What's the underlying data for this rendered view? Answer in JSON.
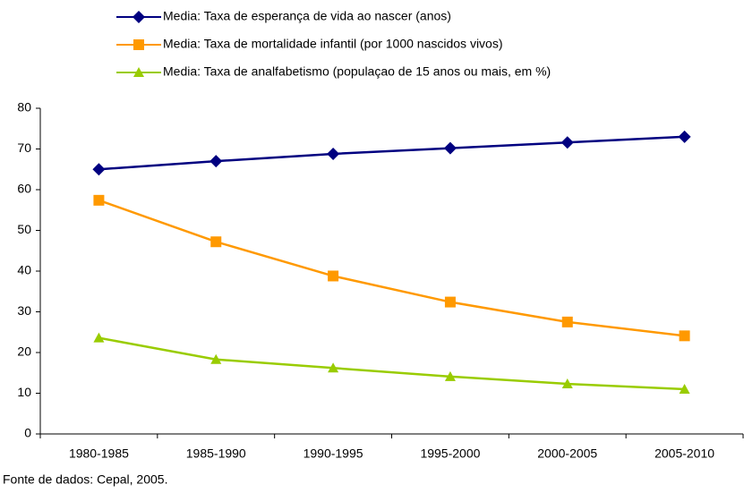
{
  "chart_data": {
    "type": "line",
    "categories": [
      "1980-1985",
      "1985-1990",
      "1990-1995",
      "1995-2000",
      "2000-2005",
      "2005-2010"
    ],
    "series": [
      {
        "name": "Media: Taxa de esperança de vida ao nascer (anos)",
        "color": "#000080",
        "marker": "diamond",
        "values": [
          65,
          67,
          68.8,
          70.2,
          71.6,
          73
        ]
      },
      {
        "name": "Media: Taxa de mortalidade infantil (por 1000 nascidos vivos)",
        "color": "#ff9900",
        "marker": "square",
        "values": [
          57.4,
          47.2,
          38.8,
          32.4,
          27.5,
          24.1
        ]
      },
      {
        "name": "Media: Taxa de analfabetismo (populaçao de 15 anos ou mais, em %)",
        "color": "#99cc00",
        "marker": "triangle",
        "values": [
          23.6,
          18.3,
          16.2,
          14.1,
          12.3,
          11.0
        ]
      }
    ],
    "ylim": [
      0,
      80
    ],
    "yticks": [
      0,
      10,
      20,
      30,
      40,
      50,
      60,
      70,
      80
    ],
    "grid": false,
    "legend": "top",
    "source": "Fonte de dados: Cepal, 2005."
  }
}
